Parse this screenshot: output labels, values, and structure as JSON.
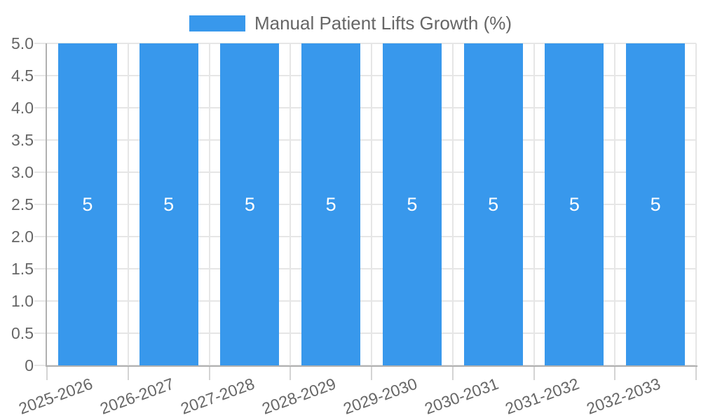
{
  "legend": {
    "label": "Manual Patient Lifts Growth (%)"
  },
  "chart_data": {
    "type": "bar",
    "title": "Manual Patient Lifts Growth (%)",
    "categories": [
      "2025-2026",
      "2026-2027",
      "2027-2028",
      "2028-2029",
      "2029-2030",
      "2030-2031",
      "2031-2032",
      "2032-2033"
    ],
    "series": [
      {
        "name": "Manual Patient Lifts Growth (%)",
        "values": [
          5,
          5,
          5,
          5,
          5,
          5,
          5,
          5
        ]
      }
    ],
    "bar_value_labels": [
      "5",
      "5",
      "5",
      "5",
      "5",
      "5",
      "5",
      "5"
    ],
    "xlabel": "",
    "ylabel": "",
    "ylim": [
      0,
      5
    ],
    "y_tick_step": 0.5,
    "y_tick_labels_top_to_bottom": [
      "5.0",
      "4.5",
      "4.0",
      "3.5",
      "3.0",
      "2.5",
      "2.0",
      "1.5",
      "1.0",
      "0.5",
      "0"
    ],
    "grid": true,
    "legend_position": "top",
    "colors": {
      "bar": "#3898EC",
      "text": "#666666",
      "grid": "#E6E6E6",
      "axis": "#B1B1B1",
      "tick": "#D4D4D4",
      "bar_label": "#FFFFFF",
      "background": "#FFFFFF"
    }
  }
}
